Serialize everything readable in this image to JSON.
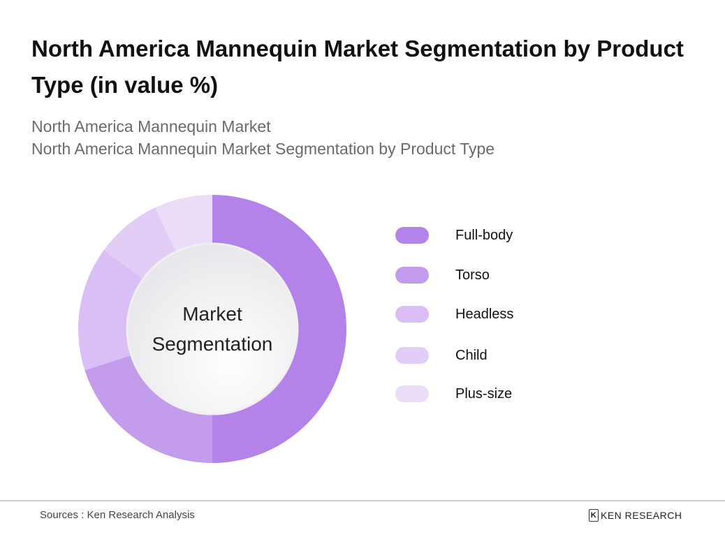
{
  "title": "North America Mannequin Market Segmentation by Product Type (in value %)",
  "subtitles": [
    "North America Mannequin Market",
    "North America Mannequin Market Segmentation by Product Type"
  ],
  "chart_data": {
    "type": "pie",
    "variant": "donut",
    "center_label": "Market Segmentation",
    "categories": [
      "Full-body",
      "Torso",
      "Headless",
      "Child",
      "Plus-size"
    ],
    "values": [
      50,
      20,
      15,
      8,
      7
    ],
    "colors": [
      "#b383e9",
      "#c49cec",
      "#d9bff5",
      "#e2cdf7",
      "#ebdcf8"
    ],
    "legend_position": "right"
  },
  "footer": {
    "source": "Sources : Ken Research Analysis",
    "logo_text": "KEN RESEARCH"
  }
}
